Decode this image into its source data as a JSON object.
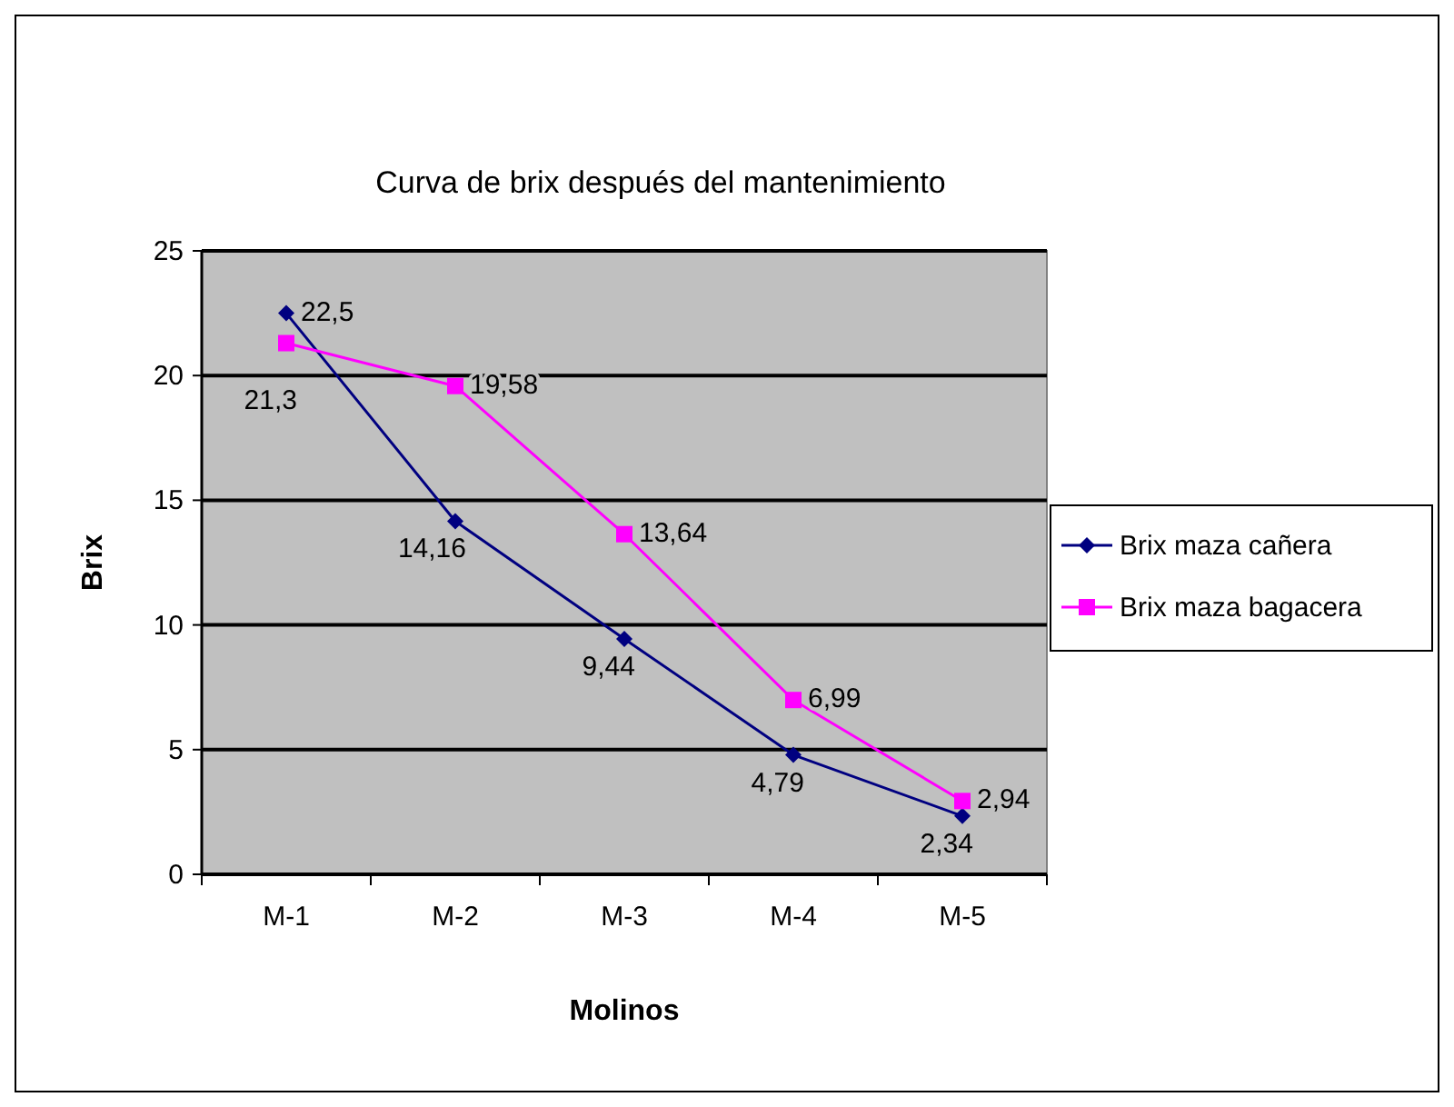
{
  "chart_data": {
    "type": "line",
    "title": "Curva de brix después del mantenimiento",
    "xlabel": "Molinos",
    "ylabel": "Brix",
    "categories": [
      "M-1",
      "M-2",
      "M-3",
      "M-4",
      "M-5"
    ],
    "series": [
      {
        "name": "Brix maza cañera",
        "color": "#000080",
        "marker": "diamond",
        "values": [
          22.5,
          14.16,
          9.44,
          4.79,
          2.34
        ],
        "value_labels": [
          "22,5",
          "14,16",
          "9,44",
          "4,79",
          "2,34"
        ]
      },
      {
        "name": "Brix maza bagacera",
        "color": "#ff00ff",
        "marker": "square",
        "values": [
          21.3,
          19.58,
          13.64,
          6.99,
          2.94
        ],
        "value_labels": [
          "21,3",
          "19,58",
          "13,64",
          "6,99",
          "2,94"
        ]
      }
    ],
    "ylim": [
      0,
      25
    ],
    "yticks": [
      0,
      5,
      10,
      15,
      20,
      25
    ],
    "grid": "y",
    "legend": "right"
  }
}
